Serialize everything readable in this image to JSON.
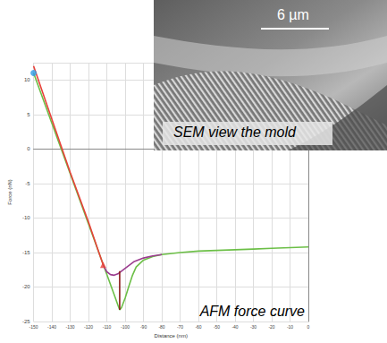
{
  "chart_data": {
    "type": "line",
    "xlabel": "Distance (nm)",
    "ylabel": "Force (nN)",
    "xlim": [
      -150,
      0
    ],
    "xticks": [
      -150,
      -140,
      -130,
      -120,
      -110,
      -100,
      -90,
      -80,
      -70,
      -60,
      -50,
      -40,
      -30,
      -20,
      -10,
      0
    ],
    "ylim": [
      -25,
      12.5
    ],
    "yticks": [
      -25,
      -20,
      -15,
      -10,
      -5,
      0,
      5,
      10
    ],
    "grid": true,
    "annotations": [
      "AFM force curve"
    ],
    "series": [
      {
        "type": "line",
        "color": "#6cbf47",
        "x": [
          -150,
          -140,
          -130,
          -120,
          -110,
          -106,
          -104,
          -103,
          -102,
          -100,
          -98,
          -96,
          -94,
          -90,
          -85,
          -80,
          -70,
          -60,
          -50,
          -40,
          -30,
          -20,
          -10,
          0
        ],
        "values": [
          11,
          3.7,
          -3.6,
          -10.9,
          -18.2,
          -21.1,
          -22.6,
          -23.3,
          -23.0,
          -21.6,
          -19.9,
          -18.3,
          -17.1,
          -16.1,
          -15.6,
          -15.3,
          -15.0,
          -14.8,
          -14.7,
          -14.6,
          -14.5,
          -14.4,
          -14.3,
          -14.2
        ]
      },
      {
        "type": "line",
        "color": "#e8413a",
        "x": [
          -150,
          -140,
          -130,
          -120,
          -115,
          -112
        ],
        "values": [
          12,
          4.3,
          -3.4,
          -10.6,
          -14.5,
          -16.8
        ]
      },
      {
        "type": "line",
        "color": "#9b3d8f",
        "x": [
          -112,
          -110,
          -108,
          -106,
          -104,
          -100,
          -95,
          -90,
          -85,
          -80
        ],
        "values": [
          -16.8,
          -17.8,
          -18.2,
          -18.3,
          -18.1,
          -17.3,
          -16.3,
          -15.8,
          -15.5,
          -15.3
        ]
      },
      {
        "type": "line",
        "color": "#8b1a1a",
        "x": [
          -103,
          -103
        ],
        "values": [
          -23.3,
          -17.7
        ]
      },
      {
        "type": "scatter",
        "color": "#2e9be6",
        "marker": "circle",
        "x": [
          -150
        ],
        "values": [
          11
        ]
      },
      {
        "type": "scatter",
        "color": "#e8413a",
        "marker": "triangle",
        "x": [
          -112
        ],
        "values": [
          -16.8
        ]
      }
    ]
  },
  "inset": {
    "scale_bar": "6 µm",
    "caption": "SEM view the mold"
  }
}
